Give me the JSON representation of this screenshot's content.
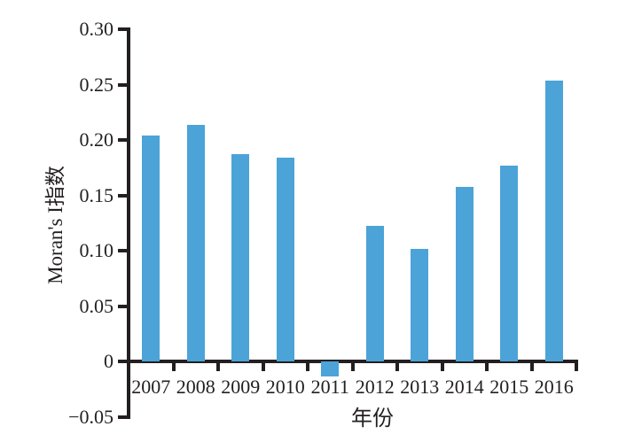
{
  "chart_data": {
    "type": "bar",
    "title": "",
    "xlabel": "年份",
    "ylabel": "Moran's I指数",
    "categories": [
      "2007",
      "2008",
      "2009",
      "2010",
      "2011",
      "2012",
      "2013",
      "2014",
      "2015",
      "2016"
    ],
    "values": [
      0.204,
      0.214,
      0.187,
      0.184,
      -0.013,
      0.123,
      0.102,
      0.158,
      0.177,
      0.254
    ],
    "ylim": [
      -0.05,
      0.3
    ],
    "yticks": [
      0.3,
      0.25,
      0.2,
      0.15,
      0.1,
      0.05,
      0,
      -0.05
    ],
    "ytick_labels": [
      "0.30",
      "0.25",
      "0.20",
      "0.15",
      "0.10",
      "0.05",
      "0",
      "-0.05"
    ],
    "bar_color": "#4ba3d8",
    "axis_color": "#231f20",
    "grid": false,
    "legend": false
  }
}
